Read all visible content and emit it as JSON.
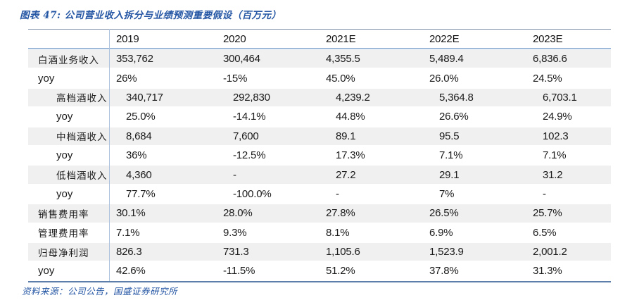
{
  "title": "图表 47:  公司营业收入拆分与业绩预测重要假设（百万元）",
  "source": "资料来源：公司公告，国盛证券研究所",
  "colors": {
    "accent_blue": "#2456a4",
    "header_top_rule": "#8093aa",
    "header_under_rule": "#9db8d8",
    "bottom_rule": "#5c7ea9",
    "row_stripe": "#f0f0f0",
    "column_rule": "#aec4de",
    "text": "#1a1a1a"
  },
  "chart_data": {
    "type": "table",
    "title": "公司营业收入拆分与业绩预测重要假设（百万元）",
    "columns": [
      "",
      "2019",
      "2020",
      "2021E",
      "2022E",
      "2023E"
    ],
    "rows": [
      {
        "label": "白酒业务收入",
        "indent": false,
        "values": [
          "353,762",
          "300,464",
          "4,355.5",
          "5,489.4",
          "6,836.6"
        ]
      },
      {
        "label": "yoy",
        "indent": false,
        "values": [
          "26%",
          "-15%",
          "45.0%",
          "26.0%",
          "24.5%"
        ]
      },
      {
        "label": "高档酒收入",
        "indent": true,
        "values": [
          "340,717",
          "292,830",
          "4,239.2",
          "5,364.8",
          "6,703.1"
        ]
      },
      {
        "label": "yoy",
        "indent": true,
        "values": [
          "25.0%",
          "-14.1%",
          "44.8%",
          "26.6%",
          "24.9%"
        ]
      },
      {
        "label": "中档酒收入",
        "indent": true,
        "values": [
          "8,684",
          "7,600",
          "89.1",
          "95.5",
          "102.3"
        ]
      },
      {
        "label": "yoy",
        "indent": true,
        "values": [
          "36%",
          "-12.5%",
          "17.3%",
          "7.1%",
          "7.1%"
        ]
      },
      {
        "label": "低档酒收入",
        "indent": true,
        "values": [
          "4,360",
          "-",
          "27.2",
          "29.1",
          "31.2"
        ]
      },
      {
        "label": "yoy",
        "indent": true,
        "values": [
          "77.7%",
          "-100.0%",
          "-",
          "7%",
          "-"
        ]
      },
      {
        "label": "销售费用率",
        "indent": false,
        "values": [
          "30.1%",
          "28.0%",
          "27.8%",
          "26.5%",
          "25.7%"
        ]
      },
      {
        "label": "管理费用率",
        "indent": false,
        "values": [
          "7.1%",
          "9.3%",
          "8.1%",
          "6.9%",
          "6.5%"
        ]
      },
      {
        "label": "归母净利润",
        "indent": false,
        "values": [
          "826.3",
          "731.3",
          "1,105.6",
          "1,523.9",
          "2,001.2"
        ]
      },
      {
        "label": "yoy",
        "indent": false,
        "values": [
          "42.6%",
          "-11.5%",
          "51.2%",
          "37.8%",
          "31.3%"
        ]
      }
    ]
  }
}
